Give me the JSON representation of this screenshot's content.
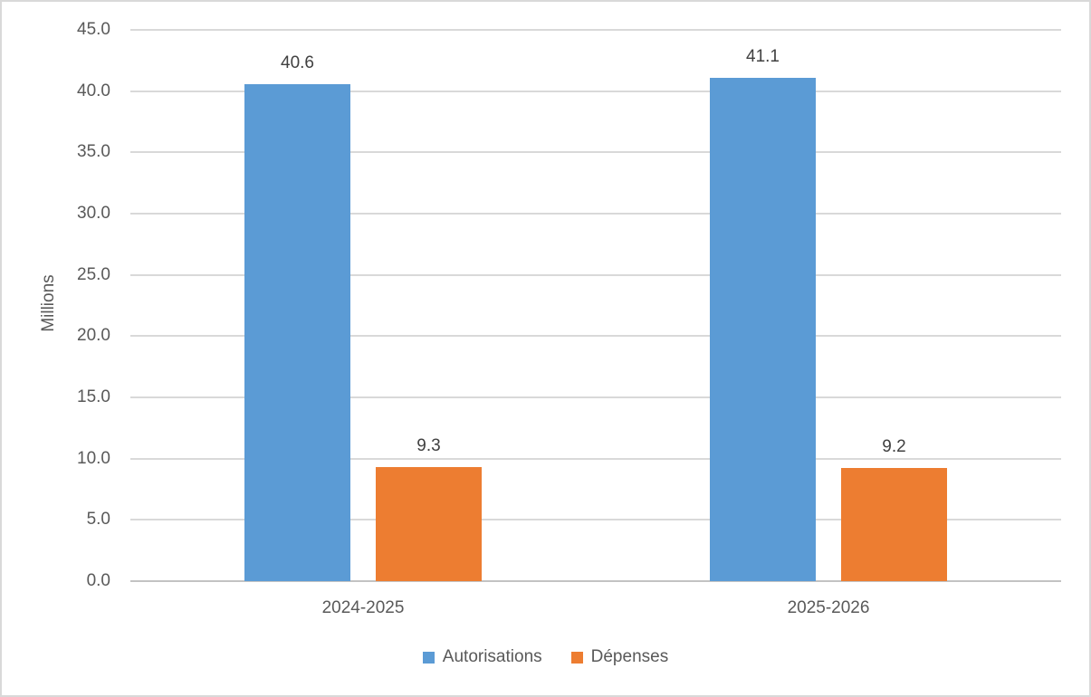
{
  "chart_data": {
    "type": "bar",
    "title": "",
    "xlabel": "",
    "ylabel": "Millions",
    "categories": [
      "2024-2025",
      "2025-2026"
    ],
    "series": [
      {
        "name": "Autorisations",
        "color": "#5b9bd5",
        "values": [
          40.6,
          41.1
        ],
        "labels": [
          "40.6",
          "41.1"
        ]
      },
      {
        "name": "Dépenses",
        "color": "#ed7d31",
        "values": [
          9.3,
          9.2
        ],
        "labels": [
          "9.3",
          "9.2"
        ]
      }
    ],
    "ylim": [
      0,
      45
    ],
    "ytick_step": 5,
    "ytick_labels": [
      "0.0",
      "5.0",
      "10.0",
      "15.0",
      "20.0",
      "25.0",
      "30.0",
      "35.0",
      "40.0",
      "45.0"
    ],
    "grid": true,
    "legend_position": "bottom",
    "colors": {
      "grid": "#d9d9d9",
      "axis_line": "#c3c3c3",
      "tick_text": "#595959",
      "data_label_text": "#404040",
      "border": "#d9d9d9",
      "background": "#ffffff"
    }
  }
}
